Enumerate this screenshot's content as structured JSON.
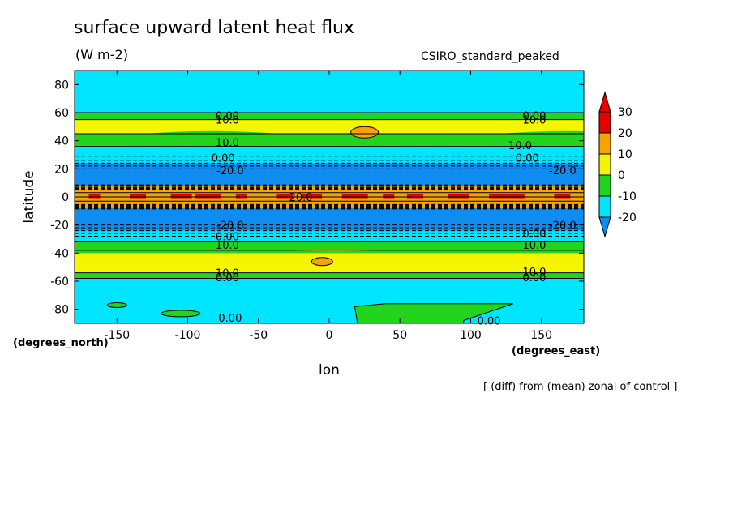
{
  "header": {
    "title": "surface upward latent heat flux",
    "units": "(W m-2)",
    "model": "CSIRO_standard_peaked"
  },
  "footnote": "[ (diff) from (mean) zonal of control ]",
  "chart_data": {
    "type": "heatmap",
    "title": "surface upward latent heat flux",
    "subtitle": "(W m-2)",
    "xlabel": "lon",
    "ylabel": "latitude",
    "x_unit": "(degrees_east)",
    "y_unit": "(degrees_north)",
    "xlim": [
      -180,
      180
    ],
    "ylim": [
      -90,
      90
    ],
    "x_ticks": [
      -150,
      -100,
      -50,
      0,
      50,
      100,
      150
    ],
    "y_ticks": [
      -80,
      -60,
      -40,
      -20,
      0,
      20,
      40,
      60,
      80
    ],
    "colorbar": {
      "levels": [
        -20,
        -10,
        0,
        10,
        20,
        30
      ],
      "colors": [
        "#0f8cf0",
        "#00e5ff",
        "#22d41c",
        "#f5f500",
        "#f5a500",
        "#e60000"
      ],
      "extend": "both"
    },
    "bands": [
      {
        "lat_range": [
          60,
          90
        ],
        "value_class": -10
      },
      {
        "lat_range": [
          55,
          60
        ],
        "value_class": 0
      },
      {
        "lat_range": [
          45,
          55
        ],
        "value_class": 10
      },
      {
        "lat_range": [
          35,
          45
        ],
        "value_class": 0
      },
      {
        "lat_range": [
          24,
          35
        ],
        "value_class": -10
      },
      {
        "lat_range": [
          8,
          24
        ],
        "value_class": -20
      },
      {
        "lat_range": [
          -8,
          8
        ],
        "value_class": 20
      },
      {
        "lat_range": [
          -24,
          -8
        ],
        "value_class": -20
      },
      {
        "lat_range": [
          -32,
          -24
        ],
        "value_class": -10
      },
      {
        "lat_range": [
          -38,
          -32
        ],
        "value_class": 0
      },
      {
        "lat_range": [
          -54,
          -38
        ],
        "value_class": 10
      },
      {
        "lat_range": [
          -58,
          -54
        ],
        "value_class": 0
      },
      {
        "lat_range": [
          -90,
          -58
        ],
        "value_class": -10
      }
    ],
    "contour_labels": [
      {
        "text": "0.00",
        "lon": -72,
        "lat": 58
      },
      {
        "text": "10.0",
        "lon": -72,
        "lat": 55
      },
      {
        "text": "0.00",
        "lon": 145,
        "lat": 58
      },
      {
        "text": "10.0",
        "lon": 145,
        "lat": 55
      },
      {
        "text": "10.0",
        "lon": -72,
        "lat": 39
      },
      {
        "text": "10.0",
        "lon": 135,
        "lat": 37
      },
      {
        "text": "0.00",
        "lon": -75,
        "lat": 28
      },
      {
        "text": "0.00",
        "lon": 140,
        "lat": 28
      },
      {
        "text": "-20.0",
        "lon": -70,
        "lat": 19
      },
      {
        "text": "-20.0",
        "lon": 165,
        "lat": 19
      },
      {
        "text": "20.0",
        "lon": -20,
        "lat": 0
      },
      {
        "text": "-20.0",
        "lon": -70,
        "lat": -20
      },
      {
        "text": "-20.0",
        "lon": 165,
        "lat": -20
      },
      {
        "text": "0.00",
        "lon": -72,
        "lat": -28
      },
      {
        "text": "0.00",
        "lon": 145,
        "lat": -26
      },
      {
        "text": "10.0",
        "lon": -72,
        "lat": -34
      },
      {
        "text": "10.0",
        "lon": 145,
        "lat": -34
      },
      {
        "text": "10.0",
        "lon": -72,
        "lat": -54
      },
      {
        "text": "0.00",
        "lon": -72,
        "lat": -57
      },
      {
        "text": "10.0",
        "lon": 145,
        "lat": -53
      },
      {
        "text": "0.00",
        "lon": 145,
        "lat": -57
      },
      {
        "text": "0.00",
        "lon": -70,
        "lat": -86
      },
      {
        "text": "0.00",
        "lon": 113,
        "lat": -88
      }
    ]
  }
}
